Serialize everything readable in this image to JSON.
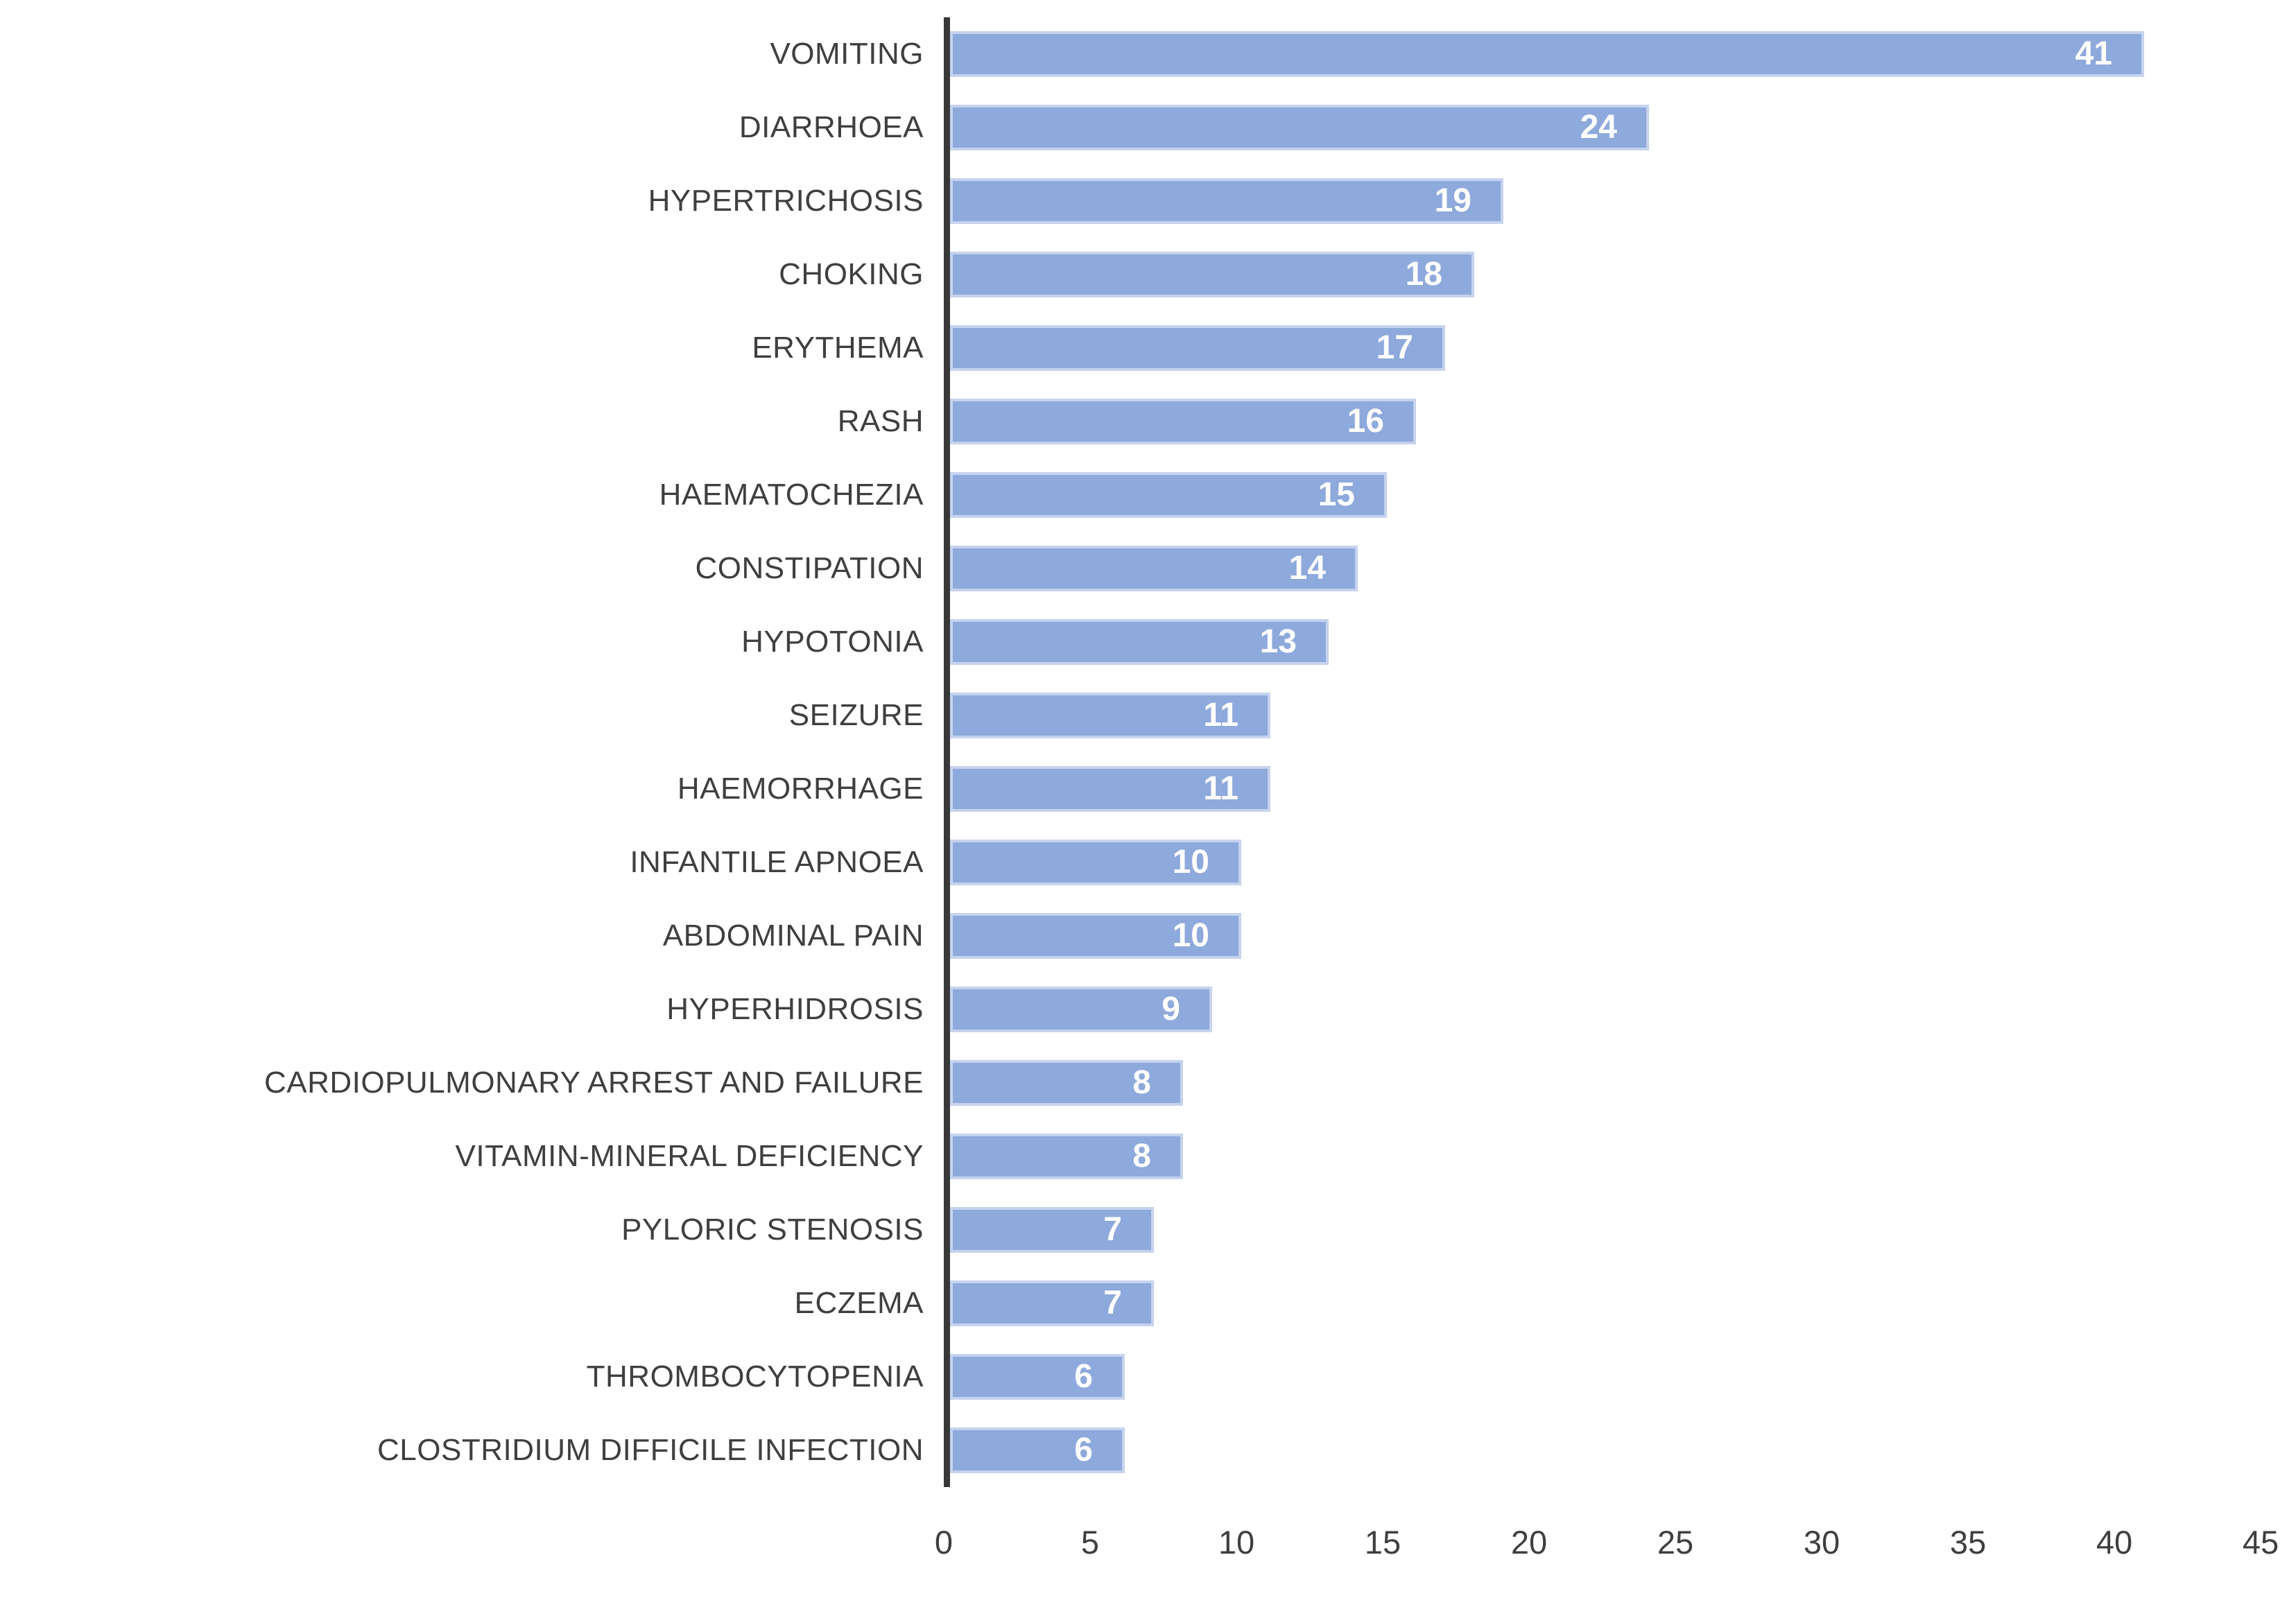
{
  "chart_data": {
    "type": "bar",
    "orientation": "horizontal",
    "title": "",
    "xlabel": "",
    "ylabel": "",
    "categories": [
      "VOMITING",
      "DIARRHOEA",
      "HYPERTRICHOSIS",
      "CHOKING",
      "ERYTHEMA",
      "RASH",
      "HAEMATOCHEZIA",
      "CONSTIPATION",
      "HYPOTONIA",
      "SEIZURE",
      "HAEMORRHAGE",
      "INFANTILE APNOEA",
      "ABDOMINAL PAIN",
      "HYPERHIDROSIS",
      "CARDIOPULMONARY ARREST AND FAILURE",
      "VITAMIN-MINERAL DEFICIENCY",
      "PYLORIC STENOSIS",
      "ECZEMA",
      "THROMBOCYTOPENIA",
      "CLOSTRIDIUM DIFFICILE INFECTION"
    ],
    "values": [
      41,
      24,
      19,
      18,
      17,
      16,
      15,
      14,
      13,
      11,
      11,
      10,
      10,
      9,
      8,
      8,
      7,
      7,
      6,
      6
    ],
    "data_labels_shown": true,
    "xlim": [
      0,
      45
    ],
    "xticks": [
      0,
      5,
      10,
      15,
      20,
      25,
      30,
      35,
      40,
      45
    ],
    "grid": false,
    "legend": false,
    "colors": {
      "bar_fill": "#8EA9DB",
      "bar_border": "#C6D3EE",
      "axis_line": "#383838",
      "category_text": "#3f3f3f",
      "tick_text": "#3f3f3f",
      "value_text": "#ffffff"
    }
  }
}
